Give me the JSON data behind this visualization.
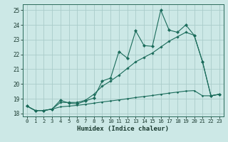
{
  "title": "",
  "xlabel": "Humidex (Indice chaleur)",
  "xlim": [
    -0.5,
    23.5
  ],
  "ylim": [
    17.8,
    25.4
  ],
  "xticks": [
    0,
    1,
    2,
    3,
    4,
    5,
    6,
    7,
    8,
    9,
    10,
    11,
    12,
    13,
    14,
    15,
    16,
    17,
    18,
    19,
    20,
    21,
    22,
    23
  ],
  "yticks": [
    18,
    19,
    20,
    21,
    22,
    23,
    24,
    25
  ],
  "bg_color": "#cce8e6",
  "grid_color": "#aaccca",
  "line_color": "#1a6b5a",
  "line_jagged": [
    18.5,
    18.2,
    18.2,
    18.3,
    18.9,
    18.7,
    18.65,
    18.85,
    19.05,
    20.2,
    20.4,
    22.2,
    21.75,
    23.6,
    22.6,
    22.55,
    25.0,
    23.65,
    23.5,
    24.0,
    23.3,
    21.5,
    19.2,
    19.3
  ],
  "line_trend": [
    18.5,
    18.2,
    18.2,
    18.3,
    18.75,
    18.75,
    18.75,
    18.9,
    19.3,
    19.85,
    20.2,
    20.6,
    21.05,
    21.5,
    21.8,
    22.1,
    22.5,
    22.9,
    23.2,
    23.5,
    23.3,
    21.5,
    19.2,
    19.3
  ],
  "line_flat": [
    18.5,
    18.2,
    18.2,
    18.3,
    18.45,
    18.5,
    18.55,
    18.62,
    18.7,
    18.78,
    18.85,
    18.92,
    19.0,
    19.08,
    19.15,
    19.22,
    19.3,
    19.38,
    19.45,
    19.52,
    19.55,
    19.2,
    19.2,
    19.3
  ]
}
